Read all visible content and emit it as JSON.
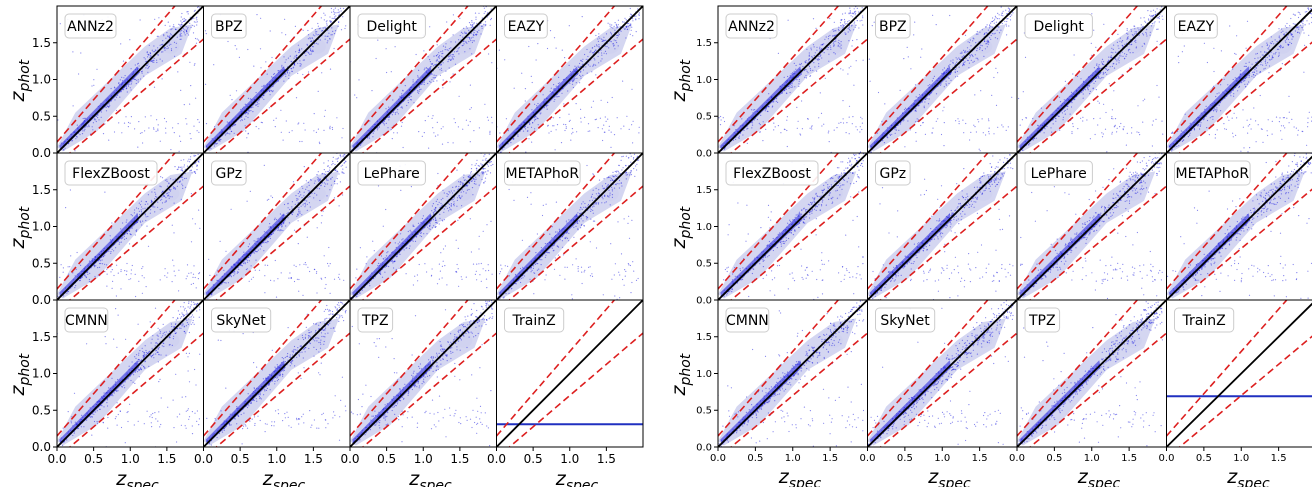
{
  "chart_data": [
    {
      "type": "scatter",
      "xlabel": "z",
      "xlabel_sub": "spec",
      "ylabel": "z",
      "ylabel_sub": "phot",
      "xlim": [
        0.0,
        2.0
      ],
      "ylim": [
        0.0,
        2.0
      ],
      "xticks": [
        "0.0",
        "0.5",
        "1.0",
        "1.5"
      ],
      "yticks": [
        "0.0",
        "0.5",
        "1.0",
        "1.5"
      ],
      "grid": false,
      "legend_position": "top-left",
      "colors": {
        "points": "#2424e0",
        "density": "#cfd2f0",
        "identity": "#000000",
        "outlier_bounds": "#dd1f1f",
        "flat": "#2030c0"
      },
      "outlier_slope": 1.15,
      "outlier_offset": 0.15,
      "panels": [
        {
          "name": "ANNz2"
        },
        {
          "name": "BPZ"
        },
        {
          "name": "Delight"
        },
        {
          "name": "EAZY"
        },
        {
          "name": "FlexZBoost"
        },
        {
          "name": "GPz"
        },
        {
          "name": "LePhare"
        },
        {
          "name": "METAPhoR"
        },
        {
          "name": "CMNN"
        },
        {
          "name": "SkyNet"
        },
        {
          "name": "TPZ"
        },
        {
          "name": "TrainZ",
          "flat_value": 0.31
        }
      ]
    },
    {
      "type": "scatter",
      "xlabel": "z",
      "xlabel_sub": "spec",
      "ylabel": "z",
      "ylabel_sub": "phot",
      "xlim": [
        0.0,
        2.0
      ],
      "ylim": [
        0.0,
        2.0
      ],
      "xticks": [
        "0.0",
        "0.5",
        "1.0",
        "1.5"
      ],
      "yticks": [
        "0.0",
        "0.5",
        "1.0",
        "1.5"
      ],
      "grid": false,
      "legend_position": "top-left",
      "colors": {
        "points": "#2424e0",
        "density": "#cfd2f0",
        "identity": "#000000",
        "outlier_bounds": "#dd1f1f",
        "flat": "#2030c0"
      },
      "outlier_slope": 1.15,
      "outlier_offset": 0.15,
      "panels": [
        {
          "name": "ANNz2"
        },
        {
          "name": "BPZ"
        },
        {
          "name": "Delight"
        },
        {
          "name": "EAZY"
        },
        {
          "name": "FlexZBoost"
        },
        {
          "name": "GPz"
        },
        {
          "name": "LePhare"
        },
        {
          "name": "METAPhoR"
        },
        {
          "name": "CMNN"
        },
        {
          "name": "SkyNet"
        },
        {
          "name": "TPZ"
        },
        {
          "name": "TrainZ",
          "flat_value": 0.69
        }
      ]
    }
  ]
}
